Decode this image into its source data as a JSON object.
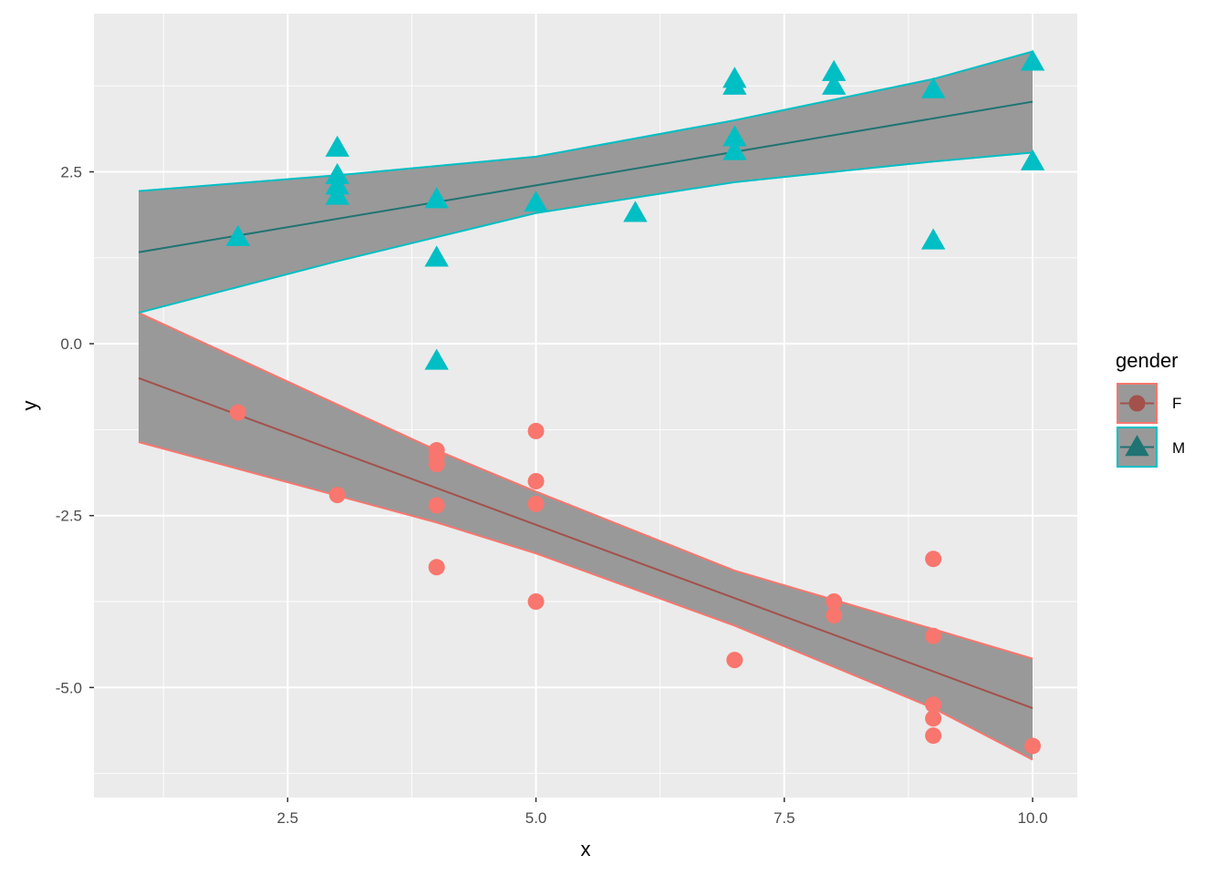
{
  "chart_data": {
    "type": "scatter",
    "title": "",
    "xlabel": "x",
    "ylabel": "y",
    "xlim": [
      0.55,
      10.45
    ],
    "ylim": [
      -6.6,
      4.8
    ],
    "x_ticks": [
      2.5,
      5.0,
      7.5,
      10.0
    ],
    "x_tick_labels": [
      "2.5",
      "5.0",
      "7.5",
      "10.0"
    ],
    "y_ticks": [
      -5.0,
      -2.5,
      0.0,
      2.5
    ],
    "y_tick_labels": [
      "-5.0",
      "-2.5",
      "0.0",
      "2.5"
    ],
    "legend": {
      "title": "gender",
      "position": "right"
    },
    "series": [
      {
        "name": "F",
        "color": "#F8766D",
        "line_color": "#A3514B",
        "band_color": "#999999",
        "marker": "circle",
        "points": [
          [
            2,
            -1.0
          ],
          [
            3,
            -2.2
          ],
          [
            4,
            -1.55
          ],
          [
            4,
            -1.65
          ],
          [
            4,
            -1.75
          ],
          [
            4,
            -2.35
          ],
          [
            4,
            -3.25
          ],
          [
            5,
            -1.27
          ],
          [
            5,
            -2.0
          ],
          [
            5,
            -2.33
          ],
          [
            5,
            -3.75
          ],
          [
            7,
            -4.6
          ],
          [
            8,
            -3.75
          ],
          [
            8,
            -3.95
          ],
          [
            9,
            -3.13
          ],
          [
            9,
            -4.25
          ],
          [
            9,
            -5.25
          ],
          [
            9,
            -5.45
          ],
          [
            9,
            -5.7
          ],
          [
            10,
            -5.85
          ]
        ],
        "fit_line": [
          [
            1,
            -0.5
          ],
          [
            10,
            -5.3
          ]
        ],
        "band_upper": [
          [
            1,
            0.45
          ],
          [
            4,
            -1.55
          ],
          [
            5,
            -2.15
          ],
          [
            7,
            -3.3
          ],
          [
            9,
            -4.15
          ],
          [
            10,
            -4.58
          ]
        ],
        "band_lower": [
          [
            1,
            -1.43
          ],
          [
            4,
            -2.6
          ],
          [
            5,
            -3.05
          ],
          [
            7,
            -4.1
          ],
          [
            9,
            -5.3
          ],
          [
            10,
            -6.05
          ]
        ]
      },
      {
        "name": "M",
        "color": "#00BFC4",
        "line_color": "#1F7373",
        "band_color": "#999999",
        "marker": "triangle",
        "points": [
          [
            2,
            1.55
          ],
          [
            3,
            2.85
          ],
          [
            3,
            2.45
          ],
          [
            3,
            2.3
          ],
          [
            3,
            2.15
          ],
          [
            4,
            2.1
          ],
          [
            4,
            1.25
          ],
          [
            4,
            -0.25
          ],
          [
            5,
            2.05
          ],
          [
            6,
            1.9
          ],
          [
            7,
            3.85
          ],
          [
            7,
            3.75
          ],
          [
            7,
            3.0
          ],
          [
            7,
            2.8
          ],
          [
            8,
            3.95
          ],
          [
            8,
            3.75
          ],
          [
            9,
            3.7
          ],
          [
            9,
            1.5
          ],
          [
            10,
            4.1
          ],
          [
            10,
            2.65
          ]
        ],
        "fit_line": [
          [
            1,
            1.33
          ],
          [
            10,
            3.52
          ]
        ],
        "band_upper": [
          [
            1,
            2.22
          ],
          [
            3,
            2.45
          ],
          [
            5,
            2.72
          ],
          [
            7,
            3.25
          ],
          [
            9,
            3.85
          ],
          [
            10,
            4.25
          ]
        ],
        "band_lower": [
          [
            1,
            0.45
          ],
          [
            3,
            1.2
          ],
          [
            5,
            1.9
          ],
          [
            7,
            2.35
          ],
          [
            9,
            2.65
          ],
          [
            10,
            2.78
          ]
        ]
      }
    ]
  }
}
